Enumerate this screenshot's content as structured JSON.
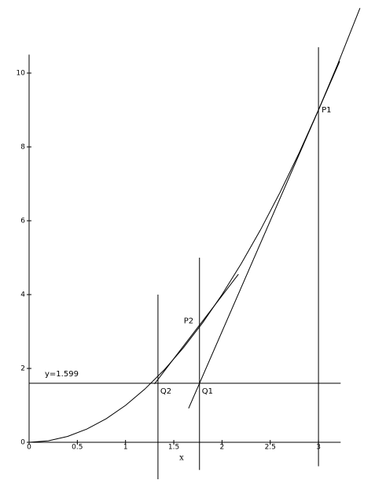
{
  "chart_data": {
    "type": "line",
    "x_label": "x",
    "xlim": [
      0,
      3.23
    ],
    "ylim": [
      0,
      10.5
    ],
    "xticks": [
      0,
      0.5,
      1,
      1.5,
      2,
      2.5,
      3
    ],
    "yticks": [
      0,
      2,
      4,
      6,
      8,
      10
    ],
    "series": [
      {
        "color": "#000000",
        "x": [
          0,
          0.2,
          0.4,
          0.6,
          0.8,
          1.0,
          1.2,
          1.4,
          1.6,
          1.8,
          2.0,
          2.2,
          2.4,
          2.6,
          2.8,
          3.0,
          3.2,
          3.43
        ],
        "values": [
          0,
          0.04,
          0.16,
          0.36,
          0.64,
          1.0,
          1.44,
          1.96,
          2.56,
          3.24,
          4.0,
          4.84,
          5.76,
          6.76,
          7.84,
          9.0,
          10.24,
          11.76
        ]
      },
      {
        "color": "#000000",
        "x": [
          1.654,
          3.22
        ],
        "values": [
          0.92,
          10.32
        ]
      },
      {
        "color": "#000000",
        "x": [
          1.3,
          2.17
        ],
        "values": [
          1.58,
          4.55
        ]
      }
    ],
    "hline": {
      "value": 1.599,
      "label": "y=1.599",
      "from": 0,
      "to": 3.23
    },
    "vlines": [
      {
        "x": 3,
        "from": -0.65,
        "to": 10.7
      },
      {
        "x": 1.7665,
        "from": -0.75,
        "to": 5.0
      },
      {
        "x": 1.336,
        "from": -1.0,
        "to": 4.0
      }
    ],
    "points": [
      {
        "label": "P1",
        "x": 3,
        "y": 9
      },
      {
        "label": "P2",
        "x": 1.7665,
        "y": 3.12
      },
      {
        "label": "Q1",
        "x": 1.7665,
        "y": 1.599
      },
      {
        "label": "Q2",
        "x": 1.336,
        "y": 1.599
      }
    ]
  }
}
